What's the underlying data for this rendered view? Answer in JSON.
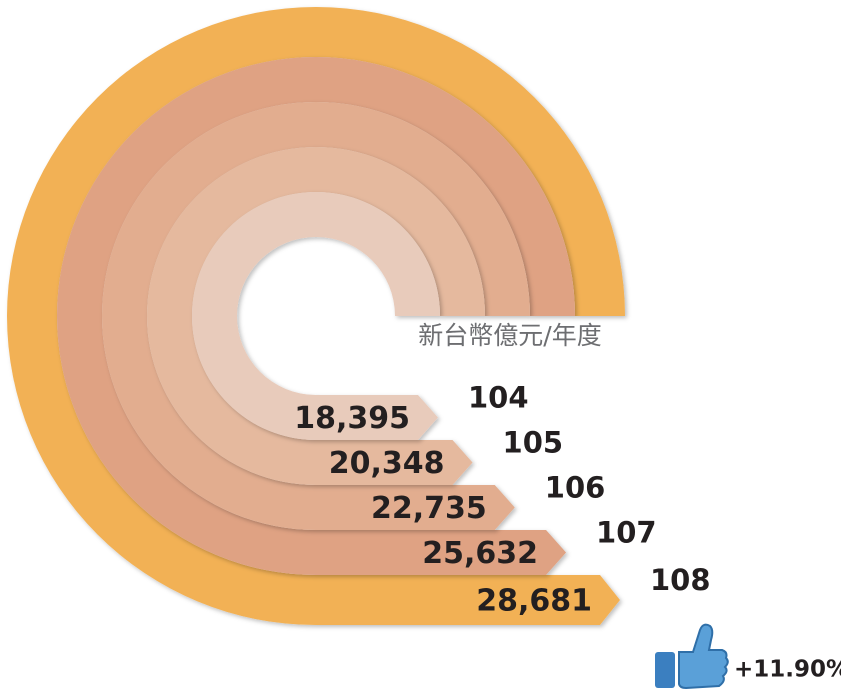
{
  "chart_data": {
    "type": "radial_bar",
    "unit": "新台幣億元/年度",
    "categories": [
      "104",
      "105",
      "106",
      "107",
      "108"
    ],
    "values": [
      18395,
      20348,
      22735,
      25632,
      28681
    ],
    "value_labels": [
      "18,395",
      "20,348",
      "22,735",
      "25,632",
      "28,681"
    ],
    "colors": [
      "#e8cbbb",
      "#e5b99e",
      "#e2ad8f",
      "#dfa283",
      "#f2b155"
    ],
    "annotation": "+11.90%"
  }
}
